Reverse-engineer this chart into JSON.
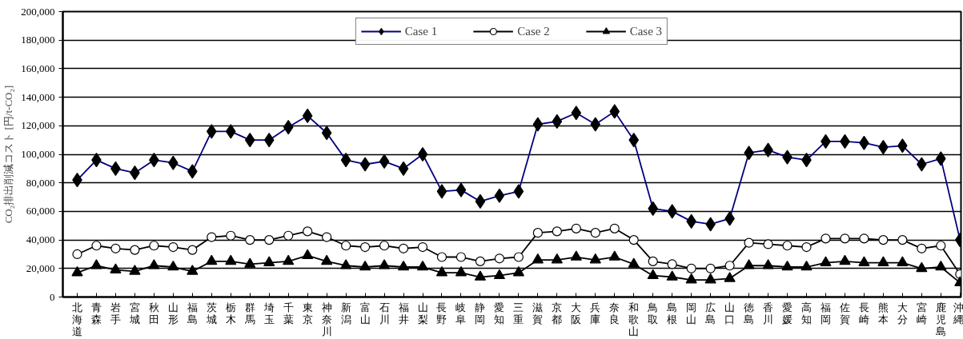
{
  "chart_data": {
    "type": "line",
    "ylabel": "CO₂排出削減コスト [円/t-CO₂]",
    "categories": [
      "北海道",
      "青森",
      "岩手",
      "宮城",
      "秋田",
      "山形",
      "福島",
      "茨城",
      "栃木",
      "群馬",
      "埼玉",
      "千葉",
      "東京",
      "神奈川",
      "新潟",
      "富山",
      "石川",
      "福井",
      "山梨",
      "長野",
      "岐阜",
      "静岡",
      "愛知",
      "三重",
      "滋賀",
      "京都",
      "大阪",
      "兵庫",
      "奈良",
      "和歌山",
      "鳥取",
      "島根",
      "岡山",
      "広島",
      "山口",
      "徳島",
      "香川",
      "愛媛",
      "高知",
      "福岡",
      "佐賀",
      "長崎",
      "熊本",
      "大分",
      "宮崎",
      "鹿児島",
      "沖縄"
    ],
    "series": [
      {
        "name": "Case 1",
        "color": "#000080",
        "marker": "diamond",
        "values": [
          82000,
          96000,
          90000,
          87000,
          96000,
          94000,
          88000,
          116000,
          116000,
          110000,
          110000,
          119000,
          127000,
          115000,
          96000,
          93000,
          95000,
          90000,
          100000,
          74000,
          75000,
          67000,
          71000,
          74000,
          121000,
          123000,
          129000,
          121000,
          130000,
          110000,
          62000,
          60000,
          53000,
          51000,
          55000,
          101000,
          103000,
          98000,
          96000,
          109000,
          109000,
          108000,
          105000,
          106000,
          93000,
          97000,
          40000
        ]
      },
      {
        "name": "Case 2",
        "color": "#000000",
        "marker": "circle",
        "values": [
          30000,
          36000,
          34000,
          33000,
          36000,
          35000,
          33000,
          42000,
          43000,
          40000,
          40000,
          43000,
          46000,
          42000,
          36000,
          35000,
          36000,
          34000,
          35000,
          28000,
          28000,
          25000,
          27000,
          28000,
          45000,
          46000,
          48000,
          45000,
          48000,
          40000,
          25000,
          23000,
          20000,
          20000,
          22000,
          38000,
          37000,
          36000,
          35000,
          41000,
          41000,
          41000,
          40000,
          40000,
          34000,
          36000,
          16000
        ]
      },
      {
        "name": "Case 3",
        "color": "#000000",
        "marker": "triangle",
        "values": [
          17000,
          22000,
          19000,
          18000,
          22000,
          21000,
          18000,
          25000,
          25000,
          23000,
          24000,
          25000,
          29000,
          25000,
          22000,
          21000,
          22000,
          21000,
          21000,
          17000,
          17000,
          14000,
          15000,
          17000,
          26000,
          26000,
          28000,
          26000,
          28000,
          23000,
          15000,
          14000,
          12000,
          12000,
          13000,
          22000,
          22000,
          21000,
          21000,
          24000,
          25000,
          24000,
          24000,
          24000,
          20000,
          21000,
          10000
        ]
      }
    ],
    "ylim": [
      0,
      200000
    ],
    "yticks": [
      {
        "value": 0,
        "label": "0"
      },
      {
        "value": 20000,
        "label": "20,000"
      },
      {
        "value": 40000,
        "label": "40,000"
      },
      {
        "value": 60000,
        "label": "60,000"
      },
      {
        "value": 80000,
        "label": "80,000"
      },
      {
        "value": 100000,
        "label": "100,000"
      },
      {
        "value": 120000,
        "label": "120,000"
      },
      {
        "value": 140000,
        "label": "140,000"
      },
      {
        "value": 160000,
        "label": "160,000"
      },
      {
        "value": 180000,
        "label": "180,000"
      },
      {
        "value": 200000,
        "label": "200,000"
      }
    ],
    "grid": "y",
    "legend": "top",
    "line_style": "solid"
  }
}
